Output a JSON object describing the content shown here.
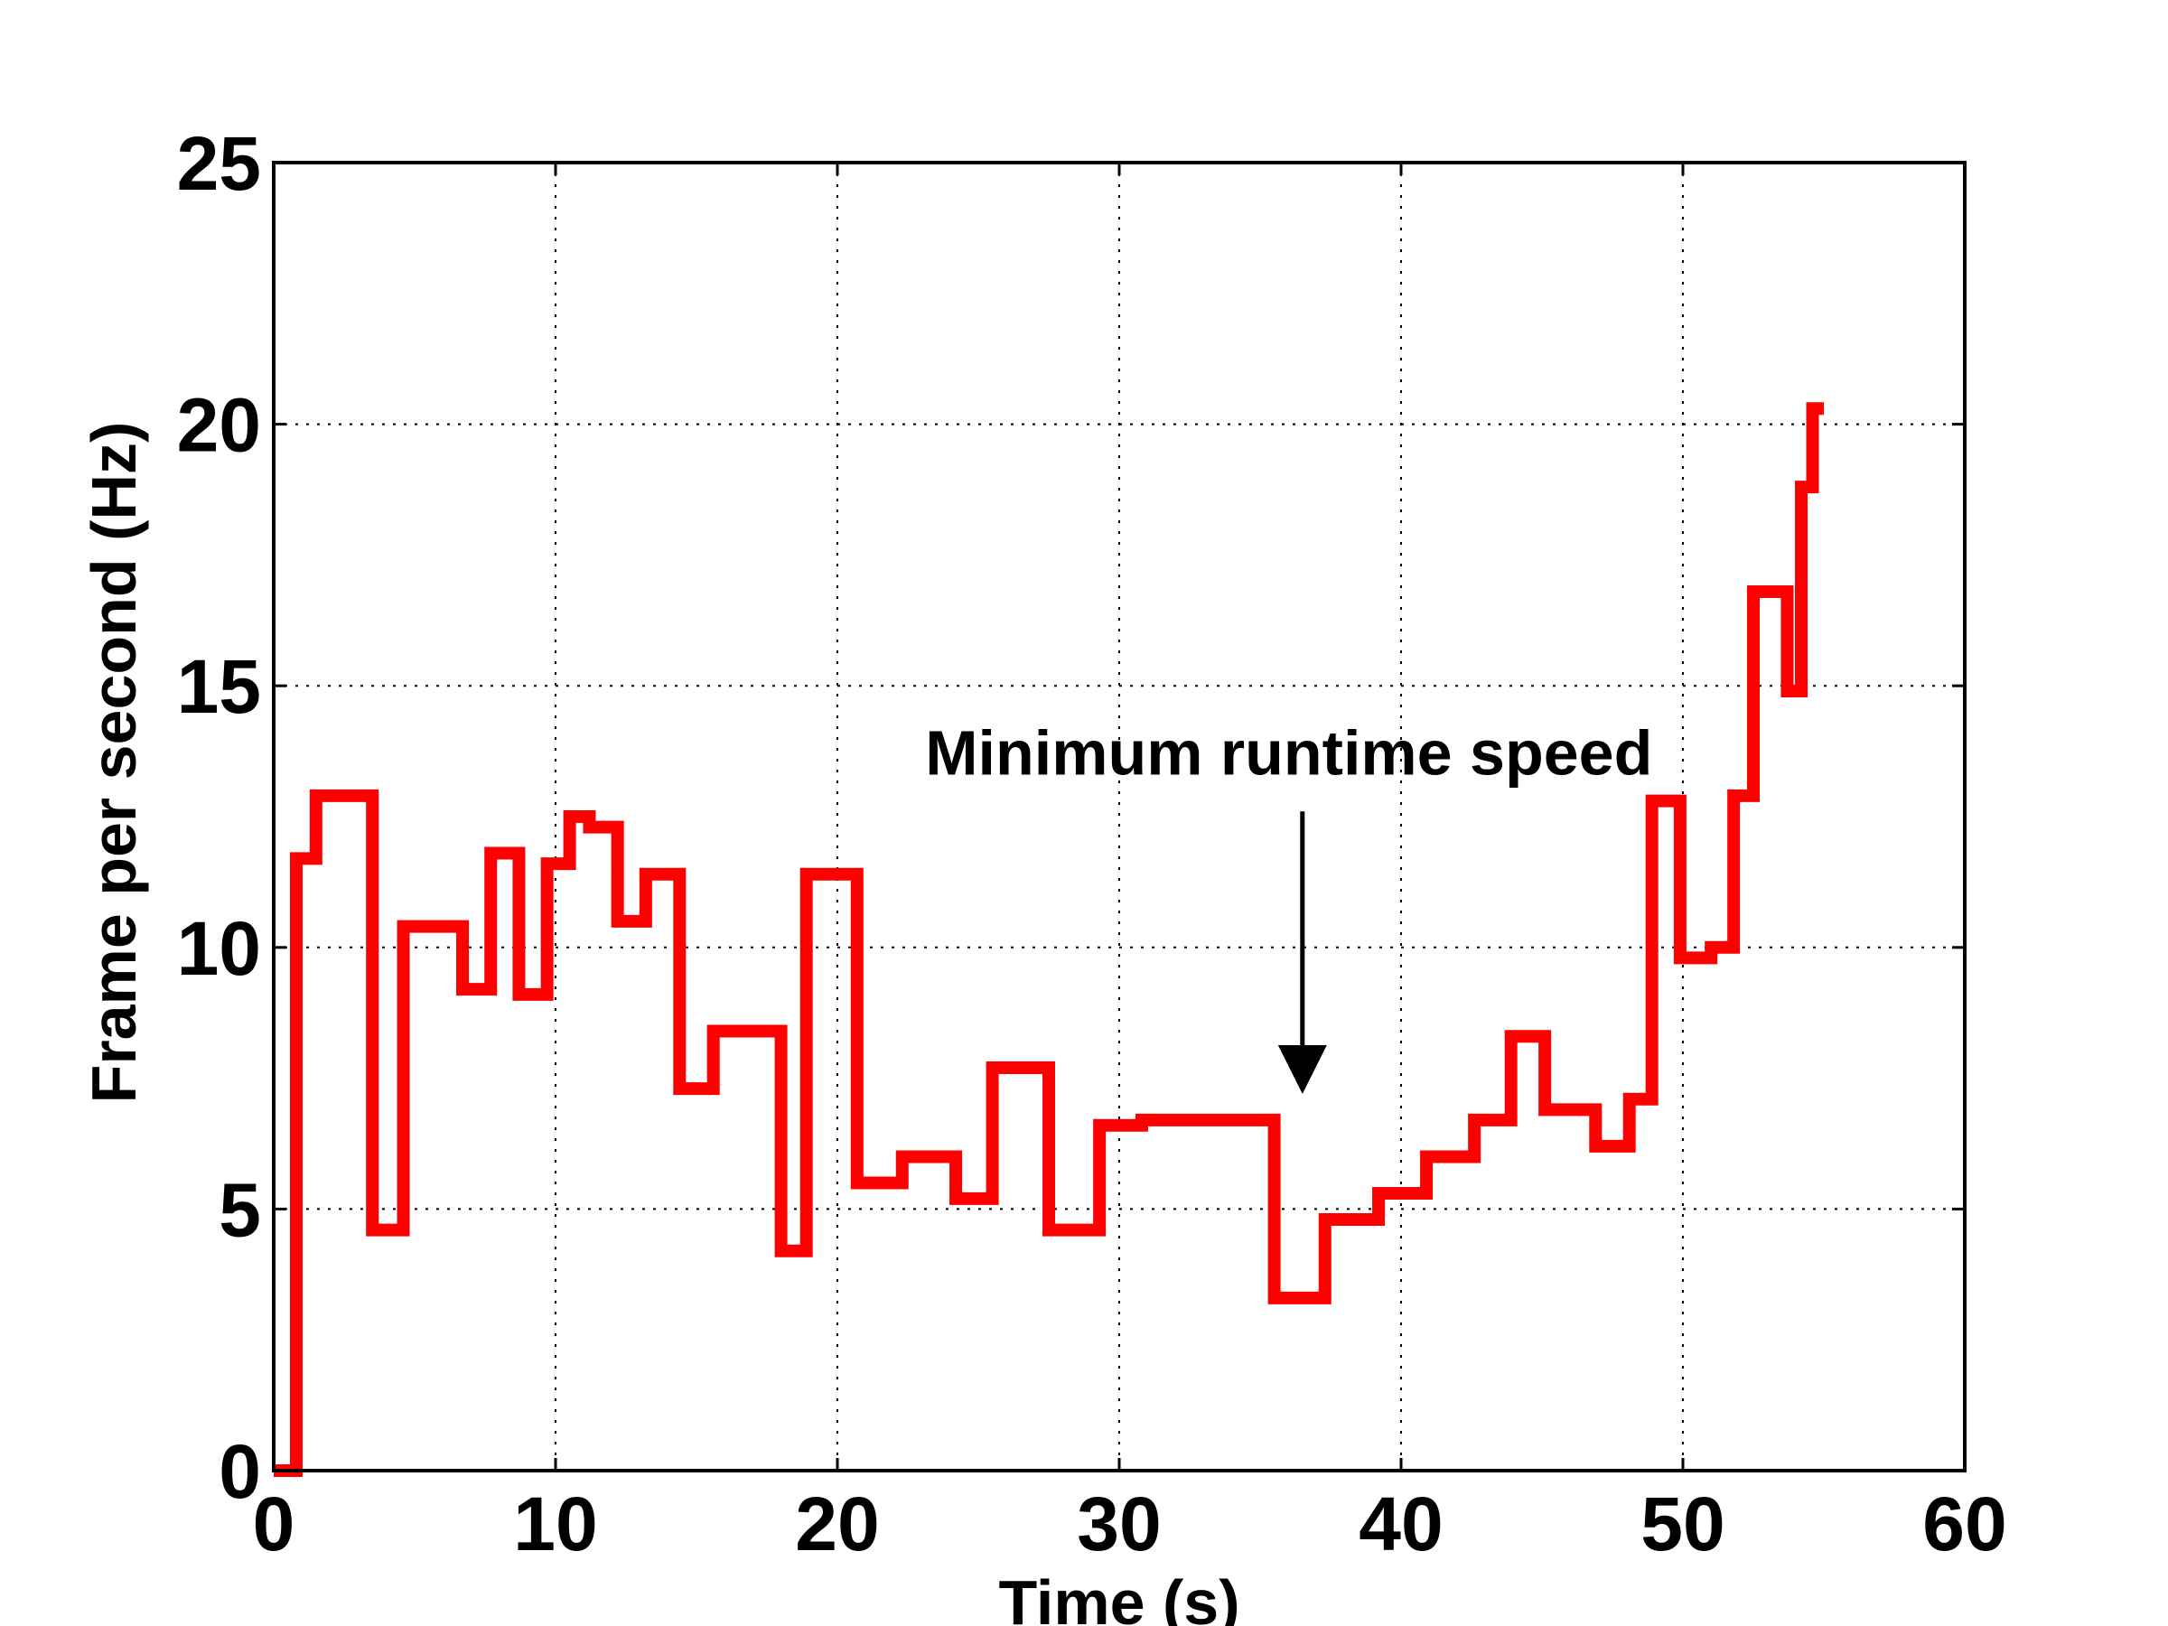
{
  "chart_data": {
    "type": "line",
    "title": "",
    "xlabel": "Time (s)",
    "ylabel": "Frame per second (Hz)",
    "xlim": [
      0,
      60
    ],
    "ylim": [
      0,
      25
    ],
    "xticks": [
      "0",
      "10",
      "20",
      "30",
      "40",
      "50",
      "60"
    ],
    "yticks": [
      "0",
      "5",
      "10",
      "15",
      "20",
      "25"
    ],
    "grid": true,
    "grid_style": "dotted",
    "line_style": "step",
    "series": [
      {
        "color": "#ff0000",
        "x": [
          0.0,
          0.8,
          1.5,
          3.5,
          4.6,
          6.7,
          7.7,
          8.7,
          9.7,
          10.5,
          11.2,
          12.2,
          13.2,
          14.4,
          15.6,
          18.0,
          18.9,
          20.7,
          22.3,
          24.2,
          25.5,
          27.5,
          29.3,
          30.8,
          35.5,
          37.3,
          39.2,
          40.9,
          42.6,
          43.9,
          45.1,
          46.9,
          48.1,
          48.9,
          49.9,
          51.0,
          51.8,
          52.5,
          53.7,
          54.2,
          54.6,
          55.0
        ],
        "y": [
          0.0,
          11.7,
          12.9,
          4.6,
          10.4,
          9.2,
          11.8,
          9.1,
          11.6,
          12.5,
          12.3,
          10.5,
          11.4,
          7.3,
          8.4,
          4.2,
          11.4,
          5.5,
          6.0,
          5.2,
          7.7,
          4.6,
          6.6,
          6.7,
          3.3,
          4.8,
          5.3,
          6.0,
          6.7,
          8.3,
          6.9,
          6.2,
          7.1,
          12.8,
          9.8,
          10.0,
          12.9,
          16.8,
          14.9,
          18.8,
          20.3,
          20.3
        ]
      }
    ],
    "annotations": [
      {
        "text": "Minimum runtime speed",
        "x": 36.5,
        "y_text": 13.3,
        "arrow_from": [
          36.5,
          12.6
        ],
        "arrow_to": [
          36.5,
          7.2
        ]
      }
    ]
  }
}
